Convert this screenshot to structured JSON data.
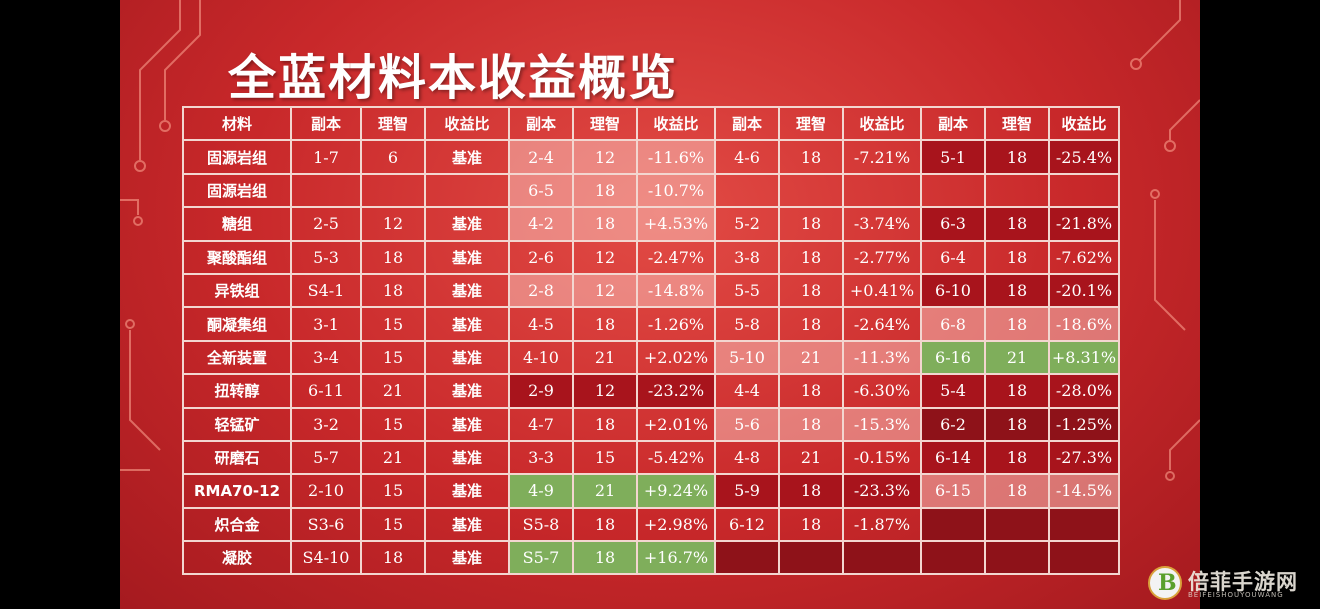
{
  "title": "全蓝材料本收益概览",
  "headers": [
    "材料",
    "副本",
    "理智",
    "收益比",
    "副本",
    "理智",
    "收益比",
    "副本",
    "理智",
    "收益比",
    "副本",
    "理智",
    "收益比"
  ],
  "colors": {
    "pale": "#f1c2bc",
    "green": "#7fae5b",
    "dark_red": "#a8141c",
    "maroon": "#8e1219"
  },
  "rows": [
    {
      "cells": [
        {
          "t": "固源岩组",
          "c": "n"
        },
        {
          "t": "1-7",
          "c": "n"
        },
        {
          "t": "6",
          "c": "n"
        },
        {
          "t": "基准",
          "c": "n"
        },
        {
          "t": "2-4",
          "c": "p"
        },
        {
          "t": "12",
          "c": "p"
        },
        {
          "t": "-11.6%",
          "c": "p"
        },
        {
          "t": "4-6",
          "c": "n"
        },
        {
          "t": "18",
          "c": "n"
        },
        {
          "t": "-7.21%",
          "c": "n"
        },
        {
          "t": "5-1",
          "c": "d"
        },
        {
          "t": "18",
          "c": "d"
        },
        {
          "t": "-25.4%",
          "c": "d"
        }
      ]
    },
    {
      "cells": [
        {
          "t": "固源岩组",
          "c": "n"
        },
        {
          "t": "",
          "c": "n"
        },
        {
          "t": "",
          "c": "n"
        },
        {
          "t": "",
          "c": "n"
        },
        {
          "t": "6-5",
          "c": "p"
        },
        {
          "t": "18",
          "c": "p"
        },
        {
          "t": "-10.7%",
          "c": "p"
        },
        {
          "t": "",
          "c": "n"
        },
        {
          "t": "",
          "c": "n"
        },
        {
          "t": "",
          "c": "n"
        },
        {
          "t": "",
          "c": "n"
        },
        {
          "t": "",
          "c": "n"
        },
        {
          "t": "",
          "c": "n"
        }
      ]
    },
    {
      "cells": [
        {
          "t": "糖组",
          "c": "n"
        },
        {
          "t": "2-5",
          "c": "n"
        },
        {
          "t": "12",
          "c": "n"
        },
        {
          "t": "基准",
          "c": "n"
        },
        {
          "t": "4-2",
          "c": "p"
        },
        {
          "t": "18",
          "c": "p"
        },
        {
          "t": "+4.53%",
          "c": "p"
        },
        {
          "t": "5-2",
          "c": "n"
        },
        {
          "t": "18",
          "c": "n"
        },
        {
          "t": "-3.74%",
          "c": "n"
        },
        {
          "t": "6-3",
          "c": "d"
        },
        {
          "t": "18",
          "c": "d"
        },
        {
          "t": "-21.8%",
          "c": "d"
        }
      ]
    },
    {
      "cells": [
        {
          "t": "聚酸酯组",
          "c": "n"
        },
        {
          "t": "5-3",
          "c": "n"
        },
        {
          "t": "18",
          "c": "n"
        },
        {
          "t": "基准",
          "c": "n"
        },
        {
          "t": "2-6",
          "c": "n"
        },
        {
          "t": "12",
          "c": "n"
        },
        {
          "t": "-2.47%",
          "c": "n"
        },
        {
          "t": "3-8",
          "c": "n"
        },
        {
          "t": "18",
          "c": "n"
        },
        {
          "t": "-2.77%",
          "c": "n"
        },
        {
          "t": "6-4",
          "c": "n"
        },
        {
          "t": "18",
          "c": "n"
        },
        {
          "t": "-7.62%",
          "c": "n"
        }
      ]
    },
    {
      "cells": [
        {
          "t": "异铁组",
          "c": "n"
        },
        {
          "t": "S4-1",
          "c": "n"
        },
        {
          "t": "18",
          "c": "n"
        },
        {
          "t": "基准",
          "c": "n"
        },
        {
          "t": "2-8",
          "c": "p"
        },
        {
          "t": "12",
          "c": "p"
        },
        {
          "t": "-14.8%",
          "c": "p"
        },
        {
          "t": "5-5",
          "c": "n"
        },
        {
          "t": "18",
          "c": "n"
        },
        {
          "t": "+0.41%",
          "c": "n"
        },
        {
          "t": "6-10",
          "c": "d"
        },
        {
          "t": "18",
          "c": "d"
        },
        {
          "t": "-20.1%",
          "c": "d"
        }
      ]
    },
    {
      "cells": [
        {
          "t": "酮凝集组",
          "c": "n"
        },
        {
          "t": "3-1",
          "c": "n"
        },
        {
          "t": "15",
          "c": "n"
        },
        {
          "t": "基准",
          "c": "n"
        },
        {
          "t": "4-5",
          "c": "n"
        },
        {
          "t": "18",
          "c": "n"
        },
        {
          "t": "-1.26%",
          "c": "n"
        },
        {
          "t": "5-8",
          "c": "n"
        },
        {
          "t": "18",
          "c": "n"
        },
        {
          "t": "-2.64%",
          "c": "n"
        },
        {
          "t": "6-8",
          "c": "p"
        },
        {
          "t": "18",
          "c": "p"
        },
        {
          "t": "-18.6%",
          "c": "p"
        }
      ]
    },
    {
      "cells": [
        {
          "t": "全新装置",
          "c": "n"
        },
        {
          "t": "3-4",
          "c": "n"
        },
        {
          "t": "15",
          "c": "n"
        },
        {
          "t": "基准",
          "c": "n"
        },
        {
          "t": "4-10",
          "c": "n"
        },
        {
          "t": "21",
          "c": "n"
        },
        {
          "t": "+2.02%",
          "c": "n"
        },
        {
          "t": "5-10",
          "c": "p"
        },
        {
          "t": "21",
          "c": "p"
        },
        {
          "t": "-11.3%",
          "c": "p"
        },
        {
          "t": "6-16",
          "c": "g"
        },
        {
          "t": "21",
          "c": "g"
        },
        {
          "t": "+8.31%",
          "c": "g"
        }
      ]
    },
    {
      "cells": [
        {
          "t": "扭转醇",
          "c": "n"
        },
        {
          "t": "6-11",
          "c": "n"
        },
        {
          "t": "21",
          "c": "n"
        },
        {
          "t": "基准",
          "c": "n"
        },
        {
          "t": "2-9",
          "c": "d"
        },
        {
          "t": "12",
          "c": "d"
        },
        {
          "t": "-23.2%",
          "c": "d"
        },
        {
          "t": "4-4",
          "c": "n"
        },
        {
          "t": "18",
          "c": "n"
        },
        {
          "t": "-6.30%",
          "c": "n"
        },
        {
          "t": "5-4",
          "c": "d"
        },
        {
          "t": "18",
          "c": "d"
        },
        {
          "t": "-28.0%",
          "c": "d"
        }
      ]
    },
    {
      "cells": [
        {
          "t": "轻锰矿",
          "c": "n"
        },
        {
          "t": "3-2",
          "c": "n"
        },
        {
          "t": "15",
          "c": "n"
        },
        {
          "t": "基准",
          "c": "n"
        },
        {
          "t": "4-7",
          "c": "n"
        },
        {
          "t": "18",
          "c": "n"
        },
        {
          "t": "+2.01%",
          "c": "n"
        },
        {
          "t": "5-6",
          "c": "p"
        },
        {
          "t": "18",
          "c": "p"
        },
        {
          "t": "-15.3%",
          "c": "p"
        },
        {
          "t": "6-2",
          "c": "m"
        },
        {
          "t": "18",
          "c": "m"
        },
        {
          "t": "-1.25%",
          "c": "m"
        }
      ]
    },
    {
      "cells": [
        {
          "t": "研磨石",
          "c": "n"
        },
        {
          "t": "5-7",
          "c": "n"
        },
        {
          "t": "21",
          "c": "n"
        },
        {
          "t": "基准",
          "c": "n"
        },
        {
          "t": "3-3",
          "c": "n"
        },
        {
          "t": "15",
          "c": "n"
        },
        {
          "t": "-5.42%",
          "c": "n"
        },
        {
          "t": "4-8",
          "c": "n"
        },
        {
          "t": "21",
          "c": "n"
        },
        {
          "t": "-0.15%",
          "c": "n"
        },
        {
          "t": "6-14",
          "c": "d"
        },
        {
          "t": "18",
          "c": "d"
        },
        {
          "t": "-27.3%",
          "c": "d"
        }
      ]
    },
    {
      "cells": [
        {
          "t": "RMA70-12",
          "c": "n"
        },
        {
          "t": "2-10",
          "c": "n"
        },
        {
          "t": "15",
          "c": "n"
        },
        {
          "t": "基准",
          "c": "n"
        },
        {
          "t": "4-9",
          "c": "g"
        },
        {
          "t": "21",
          "c": "g"
        },
        {
          "t": "+9.24%",
          "c": "g"
        },
        {
          "t": "5-9",
          "c": "d"
        },
        {
          "t": "18",
          "c": "d"
        },
        {
          "t": "-23.3%",
          "c": "d"
        },
        {
          "t": "6-15",
          "c": "p"
        },
        {
          "t": "18",
          "c": "p"
        },
        {
          "t": "-14.5%",
          "c": "p"
        }
      ]
    },
    {
      "cells": [
        {
          "t": "炽合金",
          "c": "n"
        },
        {
          "t": "S3-6",
          "c": "n"
        },
        {
          "t": "15",
          "c": "n"
        },
        {
          "t": "基准",
          "c": "n"
        },
        {
          "t": "S5-8",
          "c": "n"
        },
        {
          "t": "18",
          "c": "n"
        },
        {
          "t": "+2.98%",
          "c": "n"
        },
        {
          "t": "6-12",
          "c": "n"
        },
        {
          "t": "18",
          "c": "n"
        },
        {
          "t": "-1.87%",
          "c": "n"
        },
        {
          "t": "",
          "c": "m"
        },
        {
          "t": "",
          "c": "m"
        },
        {
          "t": "",
          "c": "m"
        }
      ]
    },
    {
      "cells": [
        {
          "t": "凝胶",
          "c": "n"
        },
        {
          "t": "S4-10",
          "c": "n"
        },
        {
          "t": "18",
          "c": "n"
        },
        {
          "t": "基准",
          "c": "n"
        },
        {
          "t": "S5-7",
          "c": "g"
        },
        {
          "t": "18",
          "c": "g"
        },
        {
          "t": "+16.7%",
          "c": "g"
        },
        {
          "t": "",
          "c": "m"
        },
        {
          "t": "",
          "c": "m"
        },
        {
          "t": "",
          "c": "m"
        },
        {
          "t": "",
          "c": "m"
        },
        {
          "t": "",
          "c": "m"
        },
        {
          "t": "",
          "c": "m"
        }
      ]
    }
  ],
  "watermark": {
    "icon_letter": "B",
    "name": "倍菲手游网",
    "sub": "BEIFEISHOUYOUWANG"
  }
}
